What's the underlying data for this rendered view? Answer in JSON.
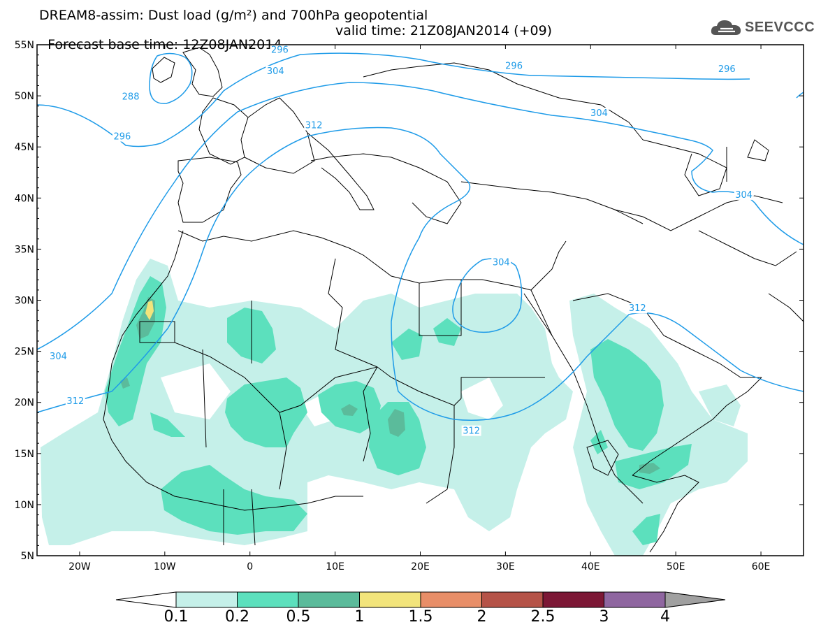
{
  "header": {
    "title_line1": "DREAM8-assim: Dust load (g/m²) and 700hPa geopotential",
    "title_line2_left": "Forecast base time: 12Z08JAN2014",
    "title_line2_right": "valid time: 21Z08JAN2014 (+09)",
    "logo_text": "SEEVCCC",
    "logo_icon": "cloud-logo-icon"
  },
  "map": {
    "lat_ticks": [
      "55N",
      "50N",
      "45N",
      "40N",
      "35N",
      "30N",
      "25N",
      "20N",
      "15N",
      "10N",
      "5N"
    ],
    "lon_ticks": [
      "20W",
      "10W",
      "0",
      "10E",
      "20E",
      "30E",
      "40E",
      "50E",
      "60E"
    ],
    "lat_range": [
      5,
      55
    ],
    "lon_range": [
      -25,
      65
    ],
    "contour_color": "#1e9be8",
    "contour_labels": [
      {
        "text": "296",
        "lon": 3.5,
        "lat": 54.5
      },
      {
        "text": "288",
        "lon": -14,
        "lat": 49.9
      },
      {
        "text": "296",
        "lon": -15,
        "lat": 46.0
      },
      {
        "text": "304",
        "lon": 3,
        "lat": 52.4
      },
      {
        "text": "312",
        "lon": 7.5,
        "lat": 47.1
      },
      {
        "text": "296",
        "lon": 31,
        "lat": 52.9
      },
      {
        "text": "296",
        "lon": 56,
        "lat": 52.6
      },
      {
        "text": "304",
        "lon": 41,
        "lat": 48.3
      },
      {
        "text": "304",
        "lon": 58,
        "lat": 40.3
      },
      {
        "text": "304",
        "lon": 29.5,
        "lat": 33.7
      },
      {
        "text": "312",
        "lon": 45.5,
        "lat": 29.2
      },
      {
        "text": "304",
        "lon": -22.5,
        "lat": 24.5
      },
      {
        "text": "312",
        "lon": -20.5,
        "lat": 20.1
      },
      {
        "text": "312",
        "lon": 26,
        "lat": 17.2
      }
    ]
  },
  "colorbar": {
    "labels": [
      "0.1",
      "0.2",
      "0.5",
      "1",
      "1.5",
      "2",
      "2.5",
      "3",
      "4"
    ],
    "colors": [
      "#c5f0e9",
      "#5ce0bd",
      "#5bbb9b",
      "#f2e47b",
      "#e88e68",
      "#b55348",
      "#7c1735",
      "#8f66a0"
    ],
    "under_color": "#ffffff",
    "over_color": "#a0a0a0"
  }
}
